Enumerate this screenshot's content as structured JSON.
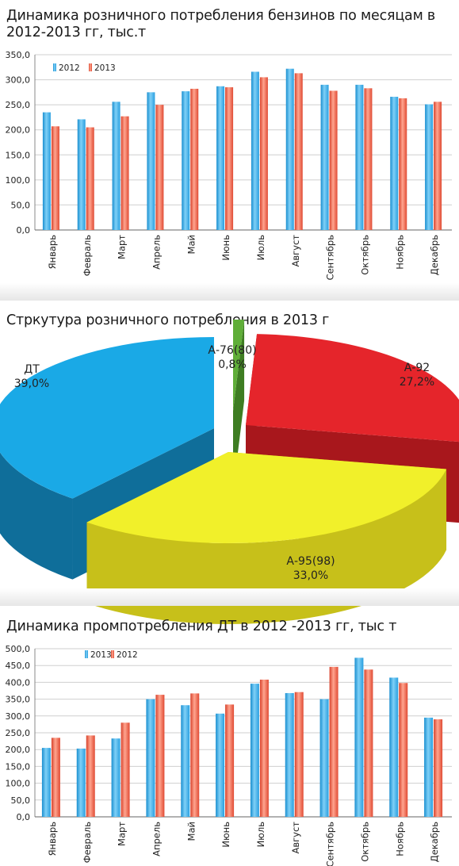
{
  "charts": [
    {
      "title": "Динамика розничного потребления бензинов по месяцам в 2012-2013 гг, тыс.т"
    },
    {
      "title": "Стркутура розничного потребления в 2013 г"
    },
    {
      "title": "Динамика промпотребления ДТ в 2012 -2013 гг, тыс т"
    }
  ],
  "colors": {
    "blue": "#3aaee8",
    "red": "#ef5a43",
    "pie_blue": "#1aa9e6",
    "pie_red": "#e5252b",
    "pie_yellow": "#f1f02a",
    "pie_green": "#5fae38"
  },
  "chart_data": [
    {
      "type": "bar",
      "title": "Динамика розничного потребления бензинов по месяцам в 2012-2013 гг, тыс.т",
      "categories": [
        "Январь",
        "Февраль",
        "Март",
        "Апрель",
        "Май",
        "Июнь",
        "Июль",
        "Август",
        "Сентябрь",
        "Октябрь",
        "Ноябрь",
        "Декабрь"
      ],
      "series": [
        {
          "name": "2012",
          "values": [
            235,
            221,
            256,
            275,
            277,
            287,
            316,
            322,
            290,
            290,
            266,
            251
          ]
        },
        {
          "name": "2013",
          "values": [
            207,
            205,
            227,
            250,
            282,
            285,
            305,
            313,
            278,
            283,
            263,
            256
          ]
        }
      ],
      "yticks": [
        "0,0",
        "50,0",
        "100,0",
        "150,0",
        "200,0",
        "250,0",
        "300,0",
        "350,0"
      ],
      "ylim": [
        0,
        350
      ],
      "legend": "top-left",
      "grid": true
    },
    {
      "type": "pie",
      "title": "Стркутура розничного потребления в 2013 г",
      "slices": [
        {
          "name": "А-76(80)",
          "value": 0.8,
          "label": "0,8%"
        },
        {
          "name": "А-92",
          "value": 27.2,
          "label": "27,2%"
        },
        {
          "name": "А-95(98)",
          "value": 33.0,
          "label": "33,0%"
        },
        {
          "name": "ДТ",
          "value": 39.0,
          "label": "39,0%"
        }
      ]
    },
    {
      "type": "bar",
      "title": "Динамика промпотребления ДТ в 2012 -2013 гг, тыс т",
      "categories": [
        "Январь",
        "Февраль",
        "Март",
        "Апрель",
        "Май",
        "Июнь",
        "Июль",
        "Август",
        "Сентябрь",
        "Октябрь",
        "Ноябрь",
        "Декабрь"
      ],
      "series": [
        {
          "name": "2013",
          "values": [
            205,
            203,
            233,
            350,
            332,
            307,
            396,
            368,
            350,
            473,
            414,
            295
          ]
        },
        {
          "name": "2012",
          "values": [
            235,
            242,
            280,
            363,
            367,
            334,
            408,
            371,
            446,
            438,
            398,
            290
          ]
        }
      ],
      "yticks": [
        "0,0",
        "50,0",
        "100,0",
        "150,0",
        "200,0",
        "250,0",
        "300,0",
        "350,0",
        "400,0",
        "450,0",
        "500,0"
      ],
      "ylim": [
        0,
        500
      ],
      "legend": "top-left",
      "grid": true
    }
  ]
}
